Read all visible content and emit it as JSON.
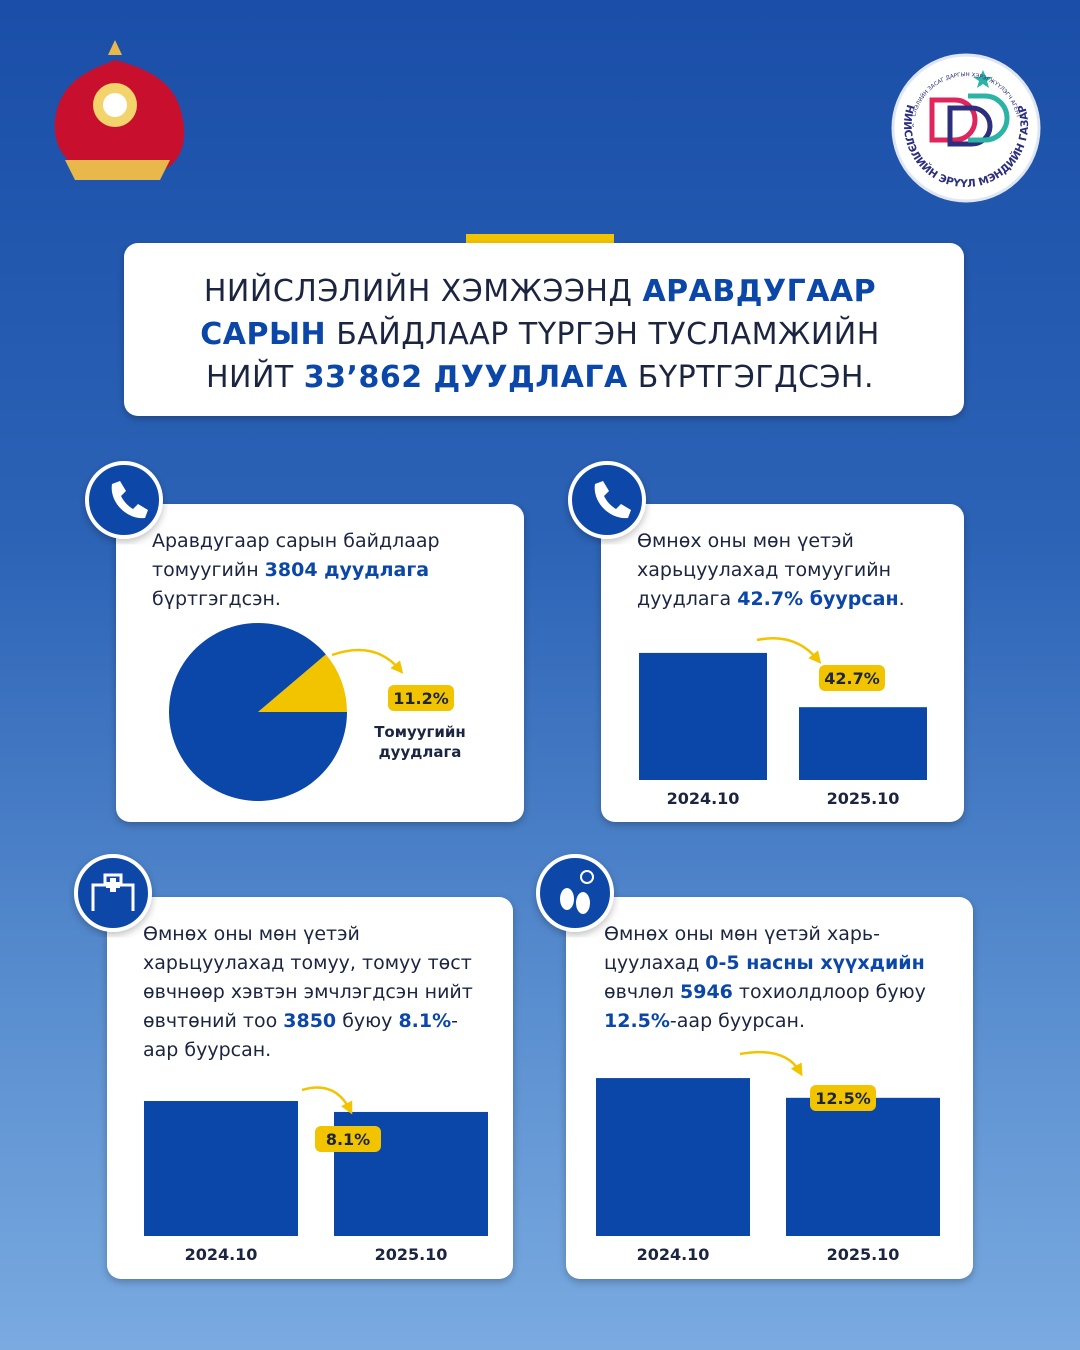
{
  "logo": {
    "name": "НИЙСЛЭЛИЙН ЭРҮҮЛ МЭНДИЙН ГАЗАР",
    "subtitle": "НИЙСЛЭЛИЙН ЗАСАГ ДАРГЫН ХЭРЭГЖҮҮЛЭГЧ АГЕНТЛАГ"
  },
  "headline": [
    "НИЙСЛЭЛИЙН ХЭМЖЭЭНД ",
    "АРАВДУГААР САРЫН",
    " БАЙДЛААР ТҮРГЭН ТУСЛАМЖИЙН НИЙТ ",
    "33’862 ДУУДЛАГА",
    " БҮРТГЭГДСЭН."
  ],
  "cards": [
    {
      "text": [
        "Аравдугаар сарын байдлаар томуугийн ",
        "3804 дуудлага",
        " бүртгэгдсэн."
      ]
    },
    {
      "text": [
        "Өмнөх оны мөн үетэй харьцуулахад томуугийн дуудлага ",
        "42.7% буурсан",
        "."
      ]
    },
    {
      "text": [
        "Өмнөх оны мөн үетэй харьцуулахад томуу, томуу төст өвчнөөр хэвтэн эмчлэгдсэн нийт өвчтөний тоо ",
        "3850",
        " буюу ",
        "8.1%",
        "-аар буурсан."
      ]
    },
    {
      "text": [
        "Өмнөх оны мөн үетэй харь-цуулахад ",
        "0-5 насны хүүхдийн",
        " өвчлөл ",
        "5946",
        " тохиолдлоор буюу ",
        "12.5%",
        "-аар буурсан."
      ]
    }
  ],
  "chart_data": [
    {
      "type": "pie",
      "categories": [
        "Томуугийн дуудлага",
        null
      ],
      "values": [
        11.2,
        88.8
      ],
      "value_labels": [
        "11.2%",
        null
      ],
      "colors": [
        "#f2c400",
        "#0b47a8"
      ]
    },
    {
      "type": "bar",
      "categories": [
        "2024.10",
        "2025.10"
      ],
      "values": [
        6639,
        3804
      ],
      "color": "#0b47a8",
      "ylim": [
        0,
        7000
      ],
      "annotation": "42.7%"
    },
    {
      "type": "bar",
      "categories": [
        "2024.10",
        "2025.10"
      ],
      "values": [
        4189,
        3850
      ],
      "color": "#0b47a8",
      "ylim": [
        0,
        4500
      ],
      "annotation": "8.1%"
    },
    {
      "type": "bar",
      "categories": [
        "2024.10",
        "2025.10"
      ],
      "values": [
        47568,
        41622
      ],
      "color": "#0b47a8",
      "ylim": [
        0,
        50000
      ],
      "annotation": "12.5%"
    }
  ]
}
